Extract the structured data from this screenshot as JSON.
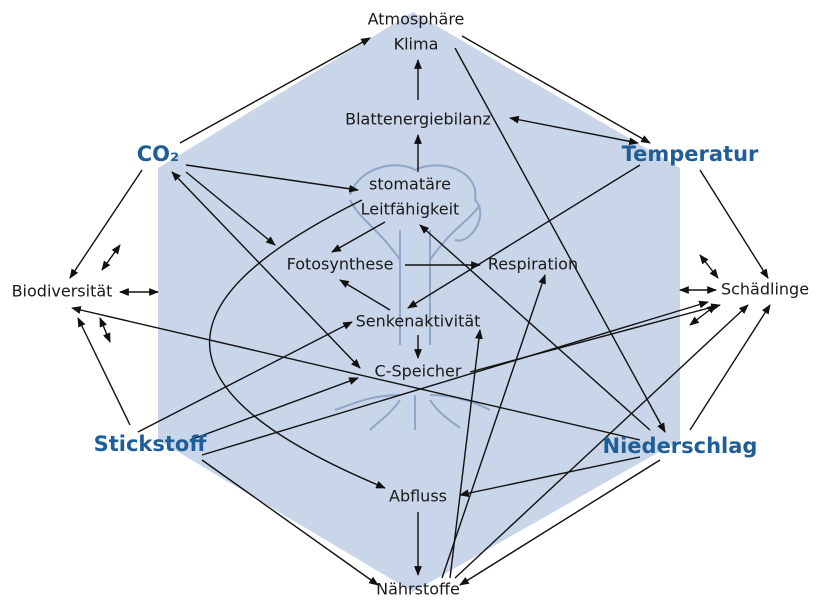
{
  "nodes": [
    {
      "lines": [
        "Atmosphäre",
        "Klima"
      ]
    },
    {
      "lines": [
        "Blattenergiebilanz"
      ]
    },
    {
      "lines": [
        "CO₂"
      ]
    },
    {
      "lines": [
        "Temperatur"
      ]
    },
    {
      "lines": [
        "stomatäre",
        "Leitfähigkeit"
      ]
    },
    {
      "lines": [
        "Fotosynthese"
      ]
    },
    {
      "lines": [
        "Respiration"
      ]
    },
    {
      "lines": [
        "Biodiversität"
      ]
    },
    {
      "lines": [
        "Schädlinge"
      ]
    },
    {
      "lines": [
        "Senkenaktivität"
      ]
    },
    {
      "lines": [
        "C-Speicher"
      ]
    },
    {
      "lines": [
        "Stickstoff"
      ]
    },
    {
      "lines": [
        "Niederschlag"
      ]
    },
    {
      "lines": [
        "Abfluss"
      ]
    },
    {
      "lines": [
        "Nährstoffe"
      ]
    }
  ]
}
